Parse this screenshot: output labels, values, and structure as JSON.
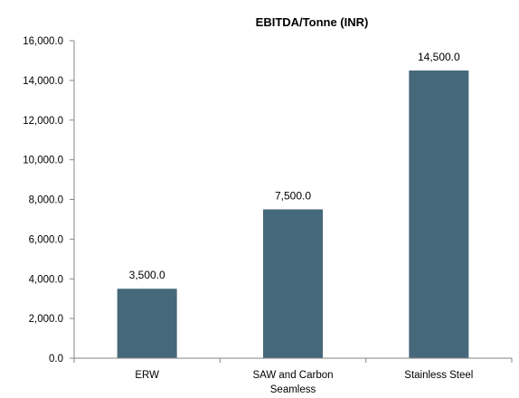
{
  "chart_data": {
    "type": "bar",
    "title": "EBITDA/Tonne (INR)",
    "categories": [
      "ERW",
      "SAW and Carbon Seamless",
      "Stainless Steel"
    ],
    "category_lines": [
      [
        "ERW"
      ],
      [
        "SAW and Carbon",
        "Seamless"
      ],
      [
        "Stainless Steel"
      ]
    ],
    "values": [
      3500,
      7500,
      14500
    ],
    "data_labels": [
      "3,500.0",
      "7,500.0",
      "14,500.0"
    ],
    "ylim": [
      0,
      16000
    ],
    "yticks": [
      0,
      2000,
      4000,
      6000,
      8000,
      10000,
      12000,
      14000,
      16000
    ],
    "ytick_labels": [
      "0.0",
      "2,000.0",
      "4,000.0",
      "6,000.0",
      "8,000.0",
      "10,000.0",
      "12,000.0",
      "14,000.0",
      "16,000.0"
    ],
    "xlabel": "",
    "ylabel": "",
    "grid": false,
    "legend": "none",
    "bar_color": "#46687B"
  }
}
